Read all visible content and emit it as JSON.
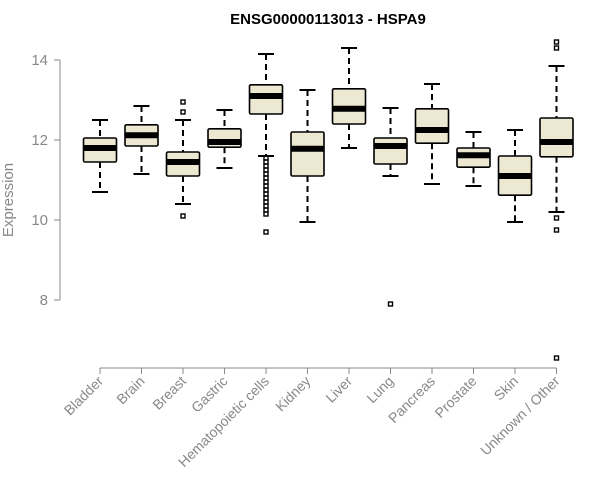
{
  "chart_data": {
    "type": "box",
    "title": "ENSG00000113013 - HSPA9",
    "ylabel": "Expression",
    "xlabel": "",
    "ylim": [
      6.5,
      14.6
    ],
    "yticks": [
      8,
      10,
      12,
      14
    ],
    "box_fill": "#ede8d2",
    "box_stroke": "#000000",
    "median_color": "#000000",
    "axis_color": "#888888",
    "categories": [
      "Bladder",
      "Brain",
      "Breast",
      "Gastric",
      "Hematopoietic cells",
      "Kidney",
      "Liver",
      "Lung",
      "Pancreas",
      "Prostate",
      "Skin",
      "Unknown / Other"
    ],
    "boxes": [
      {
        "label": "Bladder",
        "whislo": 10.7,
        "q1": 11.45,
        "med": 11.8,
        "q3": 12.05,
        "whishi": 12.5,
        "outliers": []
      },
      {
        "label": "Brain",
        "whislo": 11.15,
        "q1": 11.85,
        "med": 12.12,
        "q3": 12.38,
        "whishi": 12.85,
        "outliers": []
      },
      {
        "label": "Breast",
        "whislo": 10.4,
        "q1": 11.1,
        "med": 11.45,
        "q3": 11.7,
        "whishi": 12.5,
        "outliers": [
          12.7,
          12.95,
          10.1
        ]
      },
      {
        "label": "Gastric",
        "whislo": 11.3,
        "q1": 11.82,
        "med": 11.95,
        "q3": 12.28,
        "whishi": 12.75,
        "outliers": []
      },
      {
        "label": "Hematopoietic cells",
        "whislo": 11.6,
        "q1": 12.65,
        "med": 13.1,
        "q3": 13.38,
        "whishi": 14.15,
        "outliers": [
          11.55,
          11.45,
          11.35,
          11.25,
          11.15,
          11.05,
          10.95,
          10.85,
          10.75,
          10.65,
          10.55,
          10.45,
          10.35,
          10.25,
          10.15,
          9.7
        ]
      },
      {
        "label": "Kidney",
        "whislo": 9.95,
        "q1": 11.1,
        "med": 11.78,
        "q3": 12.2,
        "whishi": 13.25,
        "outliers": []
      },
      {
        "label": "Liver",
        "whislo": 11.8,
        "q1": 12.4,
        "med": 12.78,
        "q3": 13.28,
        "whishi": 14.3,
        "outliers": []
      },
      {
        "label": "Lung",
        "whislo": 11.1,
        "q1": 11.4,
        "med": 11.85,
        "q3": 12.05,
        "whishi": 12.8,
        "outliers": [
          7.9
        ]
      },
      {
        "label": "Pancreas",
        "whislo": 10.9,
        "q1": 11.92,
        "med": 12.25,
        "q3": 12.78,
        "whishi": 13.4,
        "outliers": []
      },
      {
        "label": "Prostate",
        "whislo": 10.85,
        "q1": 11.32,
        "med": 11.62,
        "q3": 11.8,
        "whishi": 12.2,
        "outliers": []
      },
      {
        "label": "Skin",
        "whislo": 9.95,
        "q1": 10.62,
        "med": 11.1,
        "q3": 11.6,
        "whishi": 12.25,
        "outliers": []
      },
      {
        "label": "Unknown / Other",
        "whislo": 10.2,
        "q1": 11.58,
        "med": 11.95,
        "q3": 12.55,
        "whishi": 13.85,
        "outliers": [
          14.45,
          14.3,
          10.05,
          9.75,
          6.55
        ]
      }
    ]
  }
}
